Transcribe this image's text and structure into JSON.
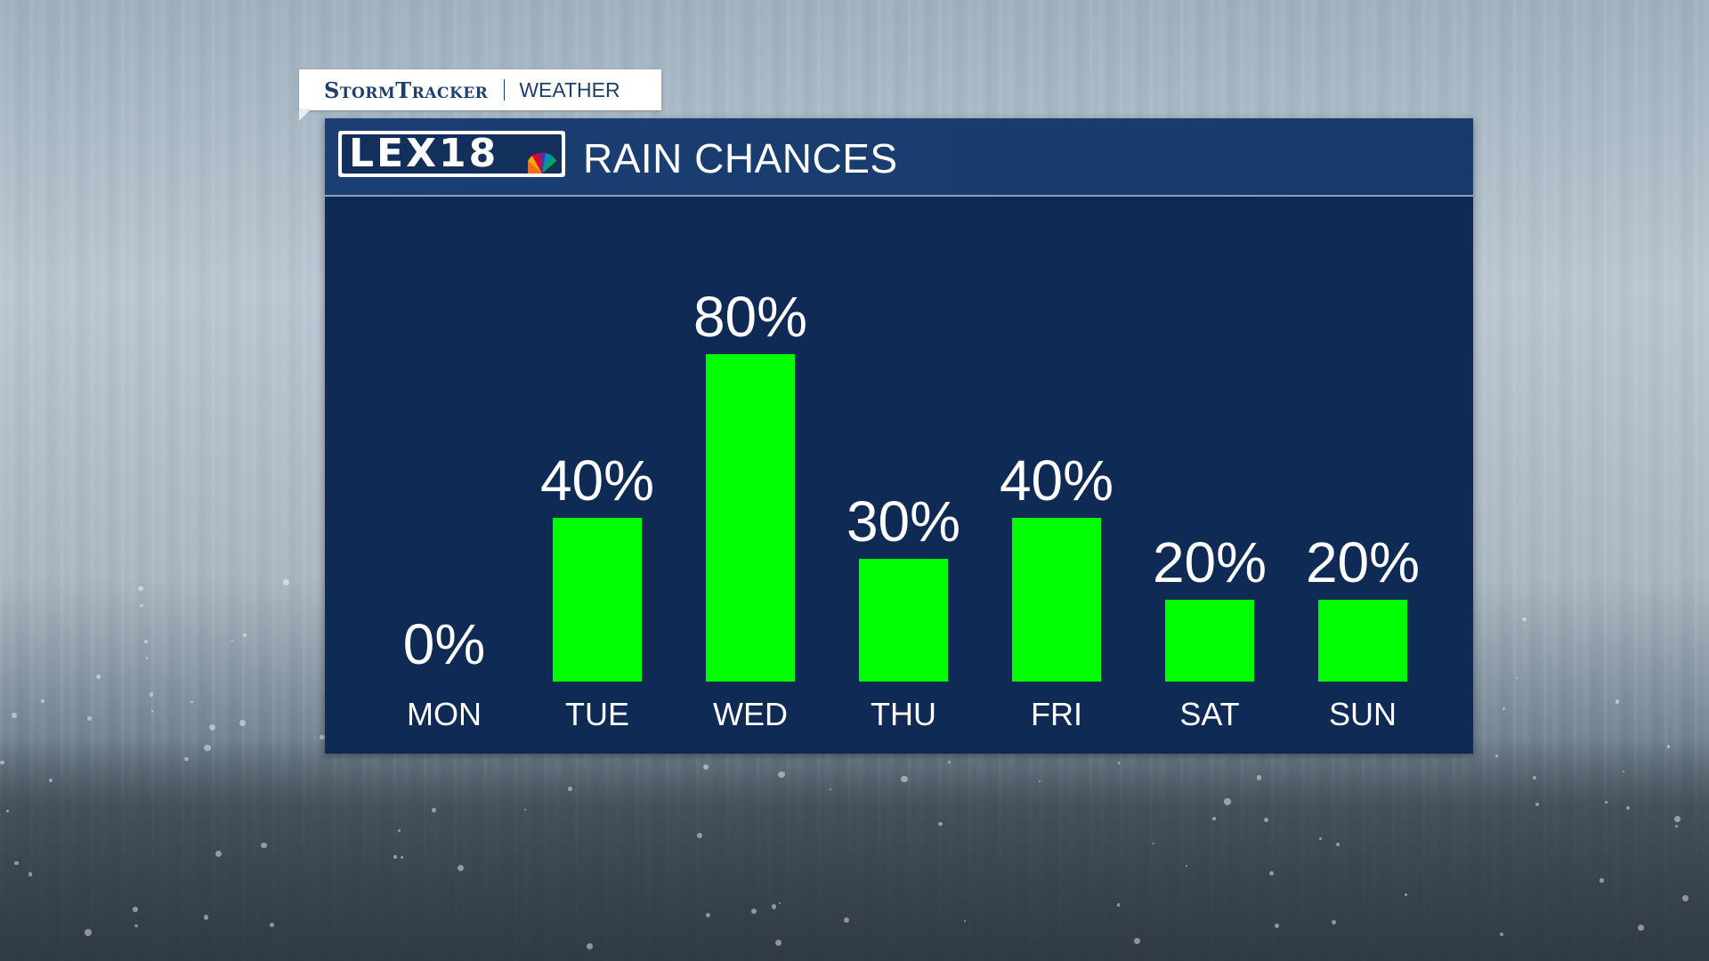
{
  "brand": {
    "storm_label": "StormTracker",
    "weather_label": "WEATHER"
  },
  "logo": {
    "text": "LEX18",
    "icon": "peacock-icon"
  },
  "header": {
    "title": "RAIN CHANCES"
  },
  "colors": {
    "panel": "#0f2b55",
    "header": "#1b3f74",
    "bar": "#00ff00",
    "text": "#ffffff"
  },
  "chart_data": {
    "type": "bar",
    "categories": [
      "MON",
      "TUE",
      "WED",
      "THU",
      "FRI",
      "SAT",
      "SUN"
    ],
    "values": [
      0,
      40,
      80,
      30,
      40,
      20,
      20
    ],
    "labels": [
      "0%",
      "40%",
      "80%",
      "30%",
      "40%",
      "20%",
      "20%"
    ],
    "title": "RAIN CHANCES",
    "ylim": [
      0,
      100
    ],
    "grid": false
  }
}
